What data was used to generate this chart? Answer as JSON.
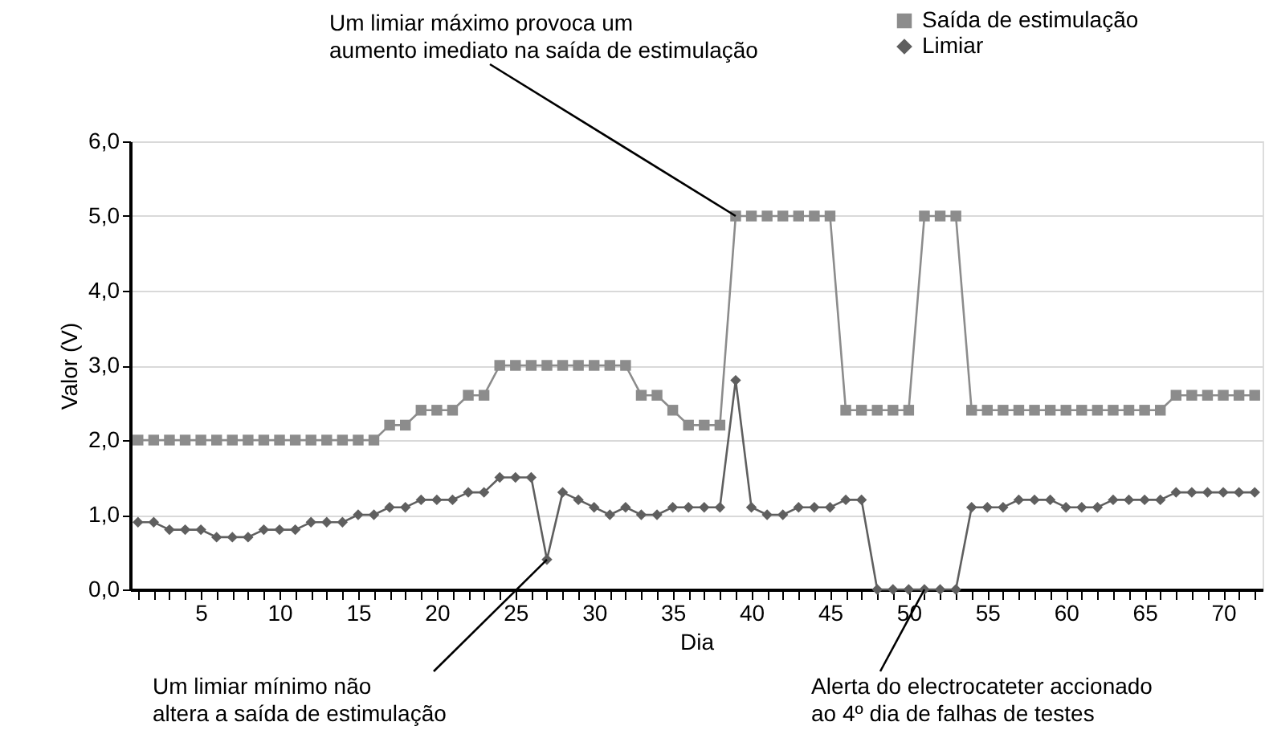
{
  "chart_data": {
    "type": "line",
    "xlabel": "Dia",
    "ylabel": "Valor (V)",
    "x": [
      1,
      2,
      3,
      4,
      5,
      6,
      7,
      8,
      9,
      10,
      11,
      12,
      13,
      14,
      15,
      16,
      17,
      18,
      19,
      20,
      21,
      22,
      23,
      24,
      25,
      26,
      27,
      28,
      29,
      30,
      31,
      32,
      33,
      34,
      35,
      36,
      37,
      38,
      39,
      40,
      41,
      42,
      43,
      44,
      45,
      46,
      47,
      48,
      49,
      50,
      51,
      52,
      53,
      54,
      55,
      56,
      57,
      58,
      59,
      60,
      61,
      62,
      63,
      64,
      65,
      66,
      67,
      68,
      69,
      70,
      71,
      72
    ],
    "series": [
      {
        "name": "Saída de estimulação",
        "color": "#8c8c8c",
        "marker": "square",
        "values": [
          2.0,
          2.0,
          2.0,
          2.0,
          2.0,
          2.0,
          2.0,
          2.0,
          2.0,
          2.0,
          2.0,
          2.0,
          2.0,
          2.0,
          2.0,
          2.0,
          2.2,
          2.2,
          2.4,
          2.4,
          2.4,
          2.6,
          2.6,
          3.0,
          3.0,
          3.0,
          3.0,
          3.0,
          3.0,
          3.0,
          3.0,
          3.0,
          2.6,
          2.6,
          2.4,
          2.2,
          2.2,
          2.2,
          5.0,
          5.0,
          5.0,
          5.0,
          5.0,
          5.0,
          5.0,
          2.4,
          2.4,
          2.4,
          2.4,
          2.4,
          5.0,
          5.0,
          5.0,
          2.4,
          2.4,
          2.4,
          2.4,
          2.4,
          2.4,
          2.4,
          2.4,
          2.4,
          2.4,
          2.4,
          2.4,
          2.4,
          2.6,
          2.6,
          2.6,
          2.6,
          2.6,
          2.6
        ]
      },
      {
        "name": "Limiar",
        "color": "#5f5f5f",
        "marker": "diamond",
        "values": [
          0.9,
          0.9,
          0.8,
          0.8,
          0.8,
          0.7,
          0.7,
          0.7,
          0.8,
          0.8,
          0.8,
          0.9,
          0.9,
          0.9,
          1.0,
          1.0,
          1.1,
          1.1,
          1.2,
          1.2,
          1.2,
          1.3,
          1.3,
          1.5,
          1.5,
          1.5,
          0.4,
          1.3,
          1.2,
          1.1,
          1.0,
          1.1,
          1.0,
          1.0,
          1.1,
          1.1,
          1.1,
          1.1,
          2.8,
          1.1,
          1.0,
          1.0,
          1.1,
          1.1,
          1.1,
          1.2,
          1.2,
          0.0,
          0.0,
          0.0,
          0.0,
          0.0,
          0.0,
          1.1,
          1.1,
          1.1,
          1.2,
          1.2,
          1.2,
          1.1,
          1.1,
          1.1,
          1.2,
          1.2,
          1.2,
          1.2,
          1.3,
          1.3,
          1.3,
          1.3,
          1.3,
          1.3
        ]
      }
    ],
    "xlim": [
      0.5,
      72.5
    ],
    "xticks": [
      {
        "value": 1,
        "label": null
      },
      {
        "value": 2,
        "label": null
      },
      {
        "value": 3,
        "label": null
      },
      {
        "value": 4,
        "label": null
      },
      5,
      {
        "value": 6,
        "label": null
      },
      {
        "value": 7,
        "label": null
      },
      {
        "value": 8,
        "label": null
      },
      {
        "value": 9,
        "label": null
      },
      10,
      {
        "value": 11,
        "label": null
      },
      {
        "value": 12,
        "label": null
      },
      {
        "value": 13,
        "label": null
      },
      {
        "value": 14,
        "label": null
      },
      15,
      {
        "value": 16,
        "label": null
      },
      {
        "value": 17,
        "label": null
      },
      {
        "value": 18,
        "label": null
      },
      {
        "value": 19,
        "label": null
      },
      20,
      {
        "value": 21,
        "label": null
      },
      {
        "value": 22,
        "label": null
      },
      {
        "value": 23,
        "label": null
      },
      {
        "value": 24,
        "label": null
      },
      25,
      {
        "value": 26,
        "label": null
      },
      {
        "value": 27,
        "label": null
      },
      {
        "value": 28,
        "label": null
      },
      {
        "value": 29,
        "label": null
      },
      30,
      {
        "value": 31,
        "label": null
      },
      {
        "value": 32,
        "label": null
      },
      {
        "value": 33,
        "label": null
      },
      {
        "value": 34,
        "label": null
      },
      35,
      {
        "value": 36,
        "label": null
      },
      {
        "value": 37,
        "label": null
      },
      {
        "value": 38,
        "label": null
      },
      {
        "value": 39,
        "label": null
      },
      40,
      {
        "value": 41,
        "label": null
      },
      {
        "value": 42,
        "label": null
      },
      {
        "value": 43,
        "label": null
      },
      {
        "value": 44,
        "label": null
      },
      45,
      {
        "value": 46,
        "label": null
      },
      {
        "value": 47,
        "label": null
      },
      {
        "value": 48,
        "label": null
      },
      {
        "value": 49,
        "label": null
      },
      50,
      {
        "value": 51,
        "label": null
      },
      {
        "value": 52,
        "label": null
      },
      {
        "value": 53,
        "label": null
      },
      {
        "value": 54,
        "label": null
      },
      55,
      {
        "value": 56,
        "label": null
      },
      {
        "value": 57,
        "label": null
      },
      {
        "value": 58,
        "label": null
      },
      {
        "value": 59,
        "label": null
      },
      60,
      {
        "value": 61,
        "label": null
      },
      {
        "value": 62,
        "label": null
      },
      {
        "value": 63,
        "label": null
      },
      {
        "value": 64,
        "label": null
      },
      65,
      {
        "value": 66,
        "label": null
      },
      {
        "value": 67,
        "label": null
      },
      {
        "value": 68,
        "label": null
      },
      {
        "value": 69,
        "label": null
      },
      70,
      {
        "value": 71,
        "label": null
      },
      {
        "value": 72,
        "label": null
      }
    ],
    "ylim": [
      0,
      6
    ],
    "yticks": [
      {
        "value": 0,
        "label": "0,0"
      },
      {
        "value": 1,
        "label": "1,0"
      },
      {
        "value": 2,
        "label": "2,0"
      },
      {
        "value": 3,
        "label": "3,0"
      },
      {
        "value": 4,
        "label": "4,0"
      },
      {
        "value": 5,
        "label": "5,0"
      },
      {
        "value": 6,
        "label": "6,0"
      }
    ],
    "grid": "y",
    "legend": "top right",
    "line_style": "solid",
    "annotations": [
      {
        "text": "Um limiar máximo provoca um aumento imediato na saída de estimulação",
        "x": 39,
        "y": 5.0
      },
      {
        "text": "Um limiar mínimo não altera a saída de estimulação",
        "x": 27,
        "y": 0.4
      },
      {
        "text": "Alerta do electrocateter accionado ao 4º dia de falhas de testes",
        "x": 51,
        "y": 0.0
      }
    ]
  }
}
